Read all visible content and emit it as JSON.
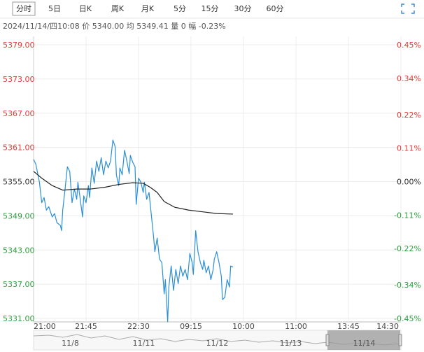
{
  "tabs": [
    "分时",
    "5日",
    "日K",
    "周K",
    "月K",
    "5分",
    "15分",
    "30分",
    "60分"
  ],
  "selected_tab": 0,
  "info": "2024/11/14/四10:08 价 5340.00 均 5349.41 量 0 幅 -0.23%",
  "chart_data": {
    "type": "line",
    "xlim": [
      0,
      315
    ],
    "xticks": [
      {
        "value": 0,
        "label": "21:00"
      },
      {
        "value": 45,
        "label": "21:45"
      },
      {
        "value": 90,
        "label": "22:30"
      },
      {
        "value": 135,
        "label": "09:15"
      },
      {
        "value": 180,
        "label": "10:00"
      },
      {
        "value": 225,
        "label": "11:00"
      },
      {
        "value": 270,
        "label": "13:45"
      },
      {
        "value": 315,
        "label": "14:30"
      }
    ],
    "ylim": [
      5331,
      5379
    ],
    "yticks": [
      {
        "value": 5379,
        "label": "5379.00"
      },
      {
        "value": 5373,
        "label": "5373.00"
      },
      {
        "value": 5367,
        "label": "5367.00"
      },
      {
        "value": 5361,
        "label": "5361.00"
      },
      {
        "value": 5355,
        "label": "5355.00"
      },
      {
        "value": 5349,
        "label": "5349.00"
      },
      {
        "value": 5343,
        "label": "5343.00"
      },
      {
        "value": 5337,
        "label": "5337.00"
      },
      {
        "value": 5331,
        "label": "5331.00"
      }
    ],
    "y2lim": [
      -0.45,
      0.45
    ],
    "y2ticks": [
      {
        "value": 0.45,
        "label": "0.45%"
      },
      {
        "value": 0.34,
        "label": "0.34%"
      },
      {
        "value": 0.22,
        "label": "0.22%"
      },
      {
        "value": 0.11,
        "label": "0.11%"
      },
      {
        "value": 0,
        "label": "0.00%"
      },
      {
        "value": -0.11,
        "label": "-0.11%"
      },
      {
        "value": -0.22,
        "label": "-0.22%"
      },
      {
        "value": -0.34,
        "label": "-0.34%"
      },
      {
        "value": -0.45,
        "label": "-0.45%"
      }
    ],
    "grid": true,
    "up_color": "#e53935",
    "down_color": "#2e9e3e",
    "flat_color": "#333333",
    "series": [
      {
        "color": "#2b8fd8",
        "x": [
          0,
          2,
          5,
          7,
          9,
          11,
          13,
          16,
          18,
          20,
          23,
          24,
          25,
          27,
          29,
          31,
          33,
          35,
          37,
          38,
          40,
          42,
          43,
          45,
          47,
          48,
          50,
          52,
          54,
          56,
          58,
          60,
          62,
          64,
          66,
          68,
          70,
          71,
          73,
          74,
          76,
          78,
          80,
          82,
          83,
          85,
          87,
          88,
          90,
          92,
          94,
          95,
          97,
          99,
          101,
          103,
          104,
          106,
          108,
          110,
          112,
          113,
          115,
          116,
          118,
          120,
          122,
          124,
          126,
          128,
          130,
          132,
          134,
          136,
          137,
          139,
          141,
          143,
          145,
          146,
          148,
          150,
          152,
          154,
          155,
          157,
          159,
          161,
          162,
          164,
          166,
          168,
          169,
          171
        ],
        "values": [
          5358.9,
          5358.0,
          5354.9,
          5351.3,
          5352.2,
          5350.0,
          5350.6,
          5348.8,
          5349.4,
          5347.8,
          5347.3,
          5346.4,
          5350.0,
          5353.7,
          5357.6,
          5356.8,
          5351.3,
          5353.7,
          5351.9,
          5354.9,
          5351.9,
          5348.8,
          5352.5,
          5351.3,
          5354.3,
          5352.2,
          5357.4,
          5354.7,
          5358.6,
          5356.8,
          5359.2,
          5356.2,
          5358.6,
          5357.4,
          5358.6,
          5362.3,
          5361.1,
          5356.2,
          5354.3,
          5357.4,
          5356.2,
          5360.5,
          5358.6,
          5356.4,
          5359.6,
          5358.4,
          5357.6,
          5351.0,
          5355.6,
          5354.9,
          5353.1,
          5354.9,
          5351.9,
          5353.1,
          5349.1,
          5345.1,
          5342.7,
          5345.1,
          5341.4,
          5340.8,
          5335.3,
          5337.8,
          5330.4,
          5336.5,
          5340.2,
          5335.9,
          5339.6,
          5337.1,
          5340.2,
          5338.4,
          5339.6,
          5337.8,
          5342.4,
          5340.8,
          5338.7,
          5346.4,
          5342.7,
          5340.8,
          5339.6,
          5341.2,
          5339.0,
          5340.2,
          5337.8,
          5339.6,
          5341.4,
          5342.7,
          5340.8,
          5338.4,
          5334.3,
          5334.7,
          5337.8,
          5336.5,
          5340.2,
          5340.0
        ]
      },
      {
        "color": "#222222",
        "x": [
          0,
          7,
          16,
          25,
          37,
          49,
          61,
          73,
          85,
          94,
          100,
          106,
          112,
          121,
          133,
          145,
          157,
          171
        ],
        "values": [
          5356.8,
          5355.6,
          5354.3,
          5353.5,
          5353.7,
          5353.7,
          5354.0,
          5354.5,
          5354.8,
          5354.7,
          5354.0,
          5353.1,
          5351.5,
          5350.5,
          5350.0,
          5349.7,
          5349.4,
          5349.3
        ]
      }
    ],
    "navigator": {
      "dates": [
        "11/8",
        "11/11",
        "11/12",
        "11/13",
        "11/14"
      ]
    }
  }
}
